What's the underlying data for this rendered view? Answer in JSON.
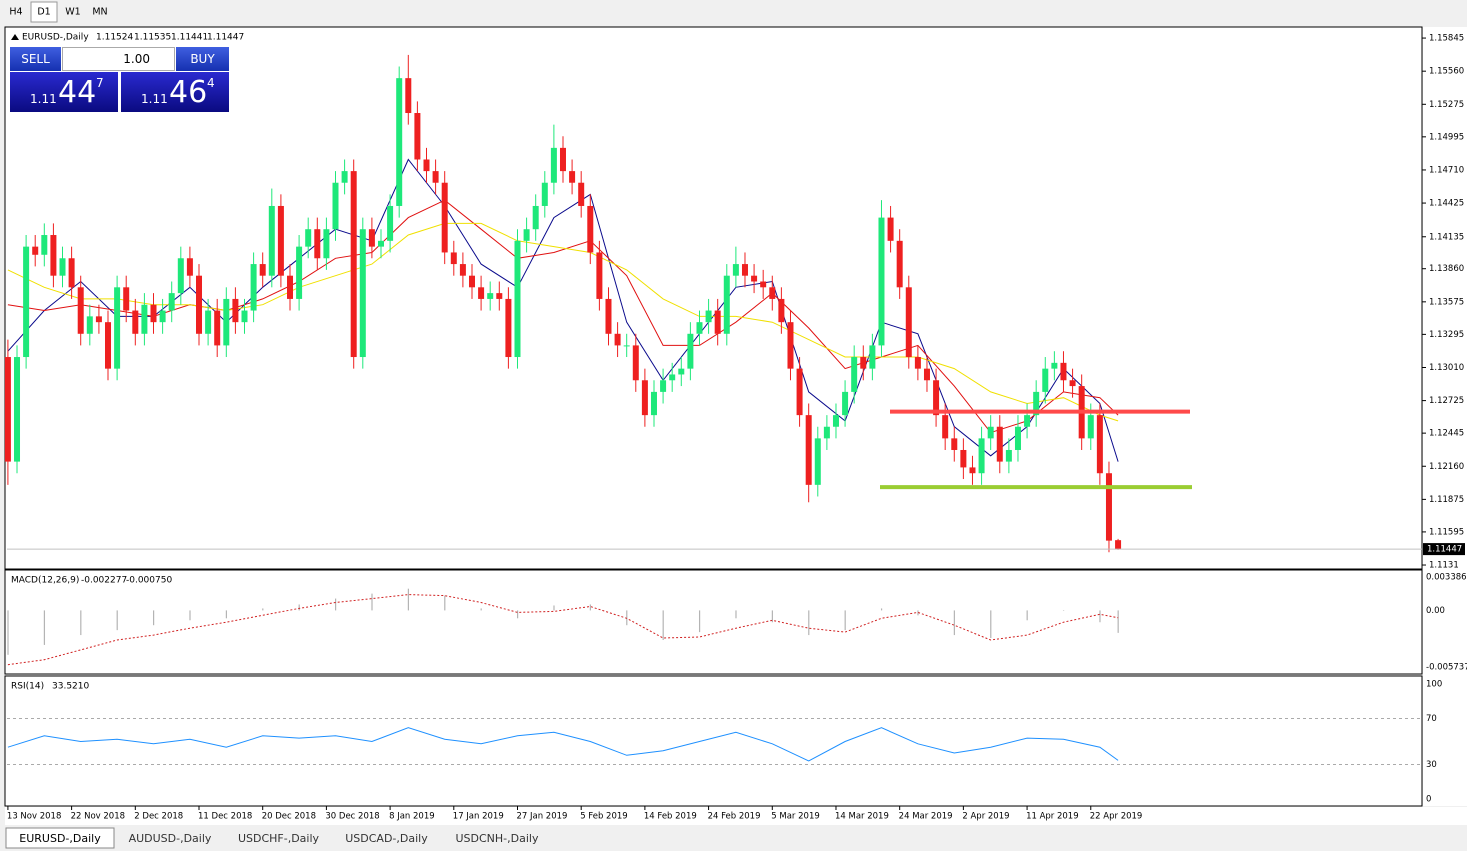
{
  "toolbar": {
    "timeframes": [
      "H4",
      "D1",
      "W1",
      "MN"
    ]
  },
  "trade_panel": {
    "sell": "SELL",
    "buy": "BUY",
    "lots": "1.00",
    "sell_price": {
      "prefix": "1.11",
      "big": "44",
      "small": "7"
    },
    "buy_price": {
      "prefix": "1.11",
      "big": "46",
      "small": "4"
    }
  },
  "tabs": [
    "EURUSD-,Daily",
    "AUDUSD-,Daily",
    "USDCHF-,Daily",
    "USDCAD-,Daily",
    "USDCNH-,Daily"
  ],
  "chart_data": [
    {
      "type": "candlestick",
      "symbol": "EURUSD-,Daily",
      "up_color": "#1ee87a",
      "down_color": "#ee2020",
      "xlim": [
        -0.1,
        155.4
      ],
      "ylim": [
        1.11293,
        1.15923
      ],
      "yticks": [
        1.15845,
        {
          "value": 1.1556,
          "label": "1.15560"
        },
        1.15275,
        1.14995,
        {
          "value": 1.1471,
          "label": "1.14710"
        },
        1.14425,
        1.14135,
        {
          "value": 1.1386,
          "label": "1.13860"
        },
        1.13575,
        1.13295,
        {
          "value": 1.1301,
          "label": "1.13010"
        },
        1.12725,
        1.12445,
        {
          "value": 1.1216,
          "label": "1.12160"
        },
        1.11875,
        1.11595,
        1.1131
      ],
      "categories": [
        "13 Nov 2018",
        null,
        null,
        null,
        null,
        null,
        null,
        "22 Nov 2018",
        null,
        null,
        null,
        null,
        null,
        null,
        "2 Dec 2018",
        null,
        null,
        null,
        null,
        null,
        null,
        "11 Dec 2018",
        null,
        null,
        null,
        null,
        null,
        null,
        "20 Dec 2018",
        null,
        null,
        null,
        null,
        null,
        null,
        "30 Dec 2018",
        null,
        null,
        null,
        null,
        null,
        null,
        "8 Jan 2019",
        null,
        null,
        null,
        null,
        null,
        null,
        "17 Jan 2019",
        null,
        null,
        null,
        null,
        null,
        null,
        "27 Jan 2019",
        null,
        null,
        null,
        null,
        null,
        null,
        "5 Feb 2019",
        null,
        null,
        null,
        null,
        null,
        null,
        "14 Feb 2019",
        null,
        null,
        null,
        null,
        null,
        null,
        "24 Feb 2019",
        null,
        null,
        null,
        null,
        null,
        null,
        "5 Mar 2019",
        null,
        null,
        null,
        null,
        null,
        null,
        "14 Mar 2019",
        null,
        null,
        null,
        null,
        null,
        null,
        "24 Mar 2019",
        null,
        null,
        null,
        null,
        null,
        null,
        "2 Apr 2019",
        null,
        null,
        null,
        null,
        null,
        null,
        "11 Apr 2019",
        null,
        null,
        null,
        null,
        null,
        null,
        "22 Apr 2019",
        null,
        null,
        null
      ],
      "ohlc": [
        [
          1.131,
          1.1325,
          1.12,
          1.122
        ],
        [
          1.122,
          1.132,
          1.121,
          1.131
        ],
        [
          1.131,
          1.1415,
          1.13,
          1.1405
        ],
        [
          1.1405,
          1.1415,
          1.1388,
          1.1398
        ],
        [
          1.1398,
          1.1425,
          1.1388,
          1.1415
        ],
        [
          1.1415,
          1.1425,
          1.137,
          1.138
        ],
        [
          1.138,
          1.1405,
          1.137,
          1.1395
        ],
        [
          1.1395,
          1.1405,
          1.136,
          1.137
        ],
        [
          1.137,
          1.138,
          1.132,
          1.133
        ],
        [
          1.133,
          1.1355,
          1.132,
          1.1345
        ],
        [
          1.1345,
          1.1355,
          1.133,
          1.134
        ],
        [
          1.134,
          1.135,
          1.129,
          1.13
        ],
        [
          1.13,
          1.138,
          1.129,
          1.137
        ],
        [
          1.137,
          1.138,
          1.134,
          1.135
        ],
        [
          1.135,
          1.136,
          1.132,
          1.133
        ],
        [
          1.133,
          1.1365,
          1.132,
          1.1355
        ],
        [
          1.1355,
          1.1365,
          1.133,
          1.134
        ],
        [
          1.134,
          1.136,
          1.133,
          1.135
        ],
        [
          1.135,
          1.1375,
          1.134,
          1.1365
        ],
        [
          1.1365,
          1.1405,
          1.1355,
          1.1395
        ],
        [
          1.1395,
          1.1405,
          1.137,
          1.138
        ],
        [
          1.138,
          1.139,
          1.132,
          1.133
        ],
        [
          1.133,
          1.136,
          1.132,
          1.135
        ],
        [
          1.135,
          1.136,
          1.131,
          1.132
        ],
        [
          1.132,
          1.137,
          1.131,
          1.136
        ],
        [
          1.136,
          1.137,
          1.133,
          1.134
        ],
        [
          1.134,
          1.136,
          1.133,
          1.135
        ],
        [
          1.135,
          1.14,
          1.134,
          1.139
        ],
        [
          1.139,
          1.14,
          1.137,
          1.138
        ],
        [
          1.138,
          1.1455,
          1.137,
          1.144
        ],
        [
          1.144,
          1.145,
          1.137,
          1.138
        ],
        [
          1.138,
          1.139,
          1.135,
          1.136
        ],
        [
          1.136,
          1.1415,
          1.135,
          1.1405
        ],
        [
          1.1405,
          1.143,
          1.1395,
          1.142
        ],
        [
          1.142,
          1.143,
          1.1385,
          1.1395
        ],
        [
          1.1395,
          1.143,
          1.1385,
          1.142
        ],
        [
          1.142,
          1.147,
          1.141,
          1.146
        ],
        [
          1.146,
          1.148,
          1.145,
          1.147
        ],
        [
          1.147,
          1.148,
          1.13,
          1.131
        ],
        [
          1.131,
          1.143,
          1.13,
          1.142
        ],
        [
          1.142,
          1.143,
          1.1395,
          1.1405
        ],
        [
          1.1405,
          1.142,
          1.1395,
          1.141
        ],
        [
          1.141,
          1.145,
          1.14,
          1.144
        ],
        [
          1.144,
          1.156,
          1.143,
          1.155
        ],
        [
          1.155,
          1.157,
          1.151,
          1.152
        ],
        [
          1.152,
          1.153,
          1.147,
          1.148
        ],
        [
          1.148,
          1.149,
          1.146,
          1.147
        ],
        [
          1.147,
          1.148,
          1.145,
          1.146
        ],
        [
          1.146,
          1.147,
          1.139,
          1.14
        ],
        [
          1.14,
          1.141,
          1.138,
          1.139
        ],
        [
          1.139,
          1.14,
          1.137,
          1.138
        ],
        [
          1.138,
          1.139,
          1.136,
          1.137
        ],
        [
          1.137,
          1.138,
          1.135,
          1.136
        ],
        [
          1.136,
          1.1375,
          1.135,
          1.1365
        ],
        [
          1.1365,
          1.1375,
          1.135,
          1.136
        ],
        [
          1.136,
          1.137,
          1.13,
          1.131
        ],
        [
          1.131,
          1.142,
          1.13,
          1.141
        ],
        [
          1.141,
          1.143,
          1.14,
          1.142
        ],
        [
          1.142,
          1.145,
          1.141,
          1.144
        ],
        [
          1.144,
          1.147,
          1.143,
          1.146
        ],
        [
          1.146,
          1.151,
          1.145,
          1.149
        ],
        [
          1.149,
          1.15,
          1.146,
          1.147
        ],
        [
          1.147,
          1.148,
          1.145,
          1.146
        ],
        [
          1.146,
          1.147,
          1.143,
          1.144
        ],
        [
          1.144,
          1.145,
          1.139,
          1.14
        ],
        [
          1.14,
          1.141,
          1.135,
          1.136
        ],
        [
          1.136,
          1.137,
          1.132,
          1.133
        ],
        [
          1.133,
          1.134,
          1.131,
          1.132
        ],
        [
          1.132,
          1.133,
          1.131,
          1.132
        ],
        [
          1.132,
          1.133,
          1.128,
          1.129
        ],
        [
          1.129,
          1.13,
          1.125,
          1.126
        ],
        [
          1.126,
          1.129,
          1.125,
          1.128
        ],
        [
          1.128,
          1.13,
          1.127,
          1.129
        ],
        [
          1.129,
          1.1305,
          1.128,
          1.1295
        ],
        [
          1.1295,
          1.131,
          1.1285,
          1.13
        ],
        [
          1.13,
          1.134,
          1.129,
          1.133
        ],
        [
          1.133,
          1.135,
          1.132,
          1.134
        ],
        [
          1.134,
          1.136,
          1.133,
          1.135
        ],
        [
          1.135,
          1.136,
          1.132,
          1.133
        ],
        [
          1.133,
          1.139,
          1.132,
          1.138
        ],
        [
          1.138,
          1.1405,
          1.137,
          1.139
        ],
        [
          1.139,
          1.14,
          1.137,
          1.138
        ],
        [
          1.138,
          1.139,
          1.1365,
          1.1375
        ],
        [
          1.1375,
          1.1385,
          1.136,
          1.137
        ],
        [
          1.137,
          1.138,
          1.135,
          1.136
        ],
        [
          1.136,
          1.137,
          1.133,
          1.134
        ],
        [
          1.134,
          1.135,
          1.129,
          1.13
        ],
        [
          1.13,
          1.131,
          1.125,
          1.126
        ],
        [
          1.126,
          1.127,
          1.1185,
          1.12
        ],
        [
          1.12,
          1.125,
          1.119,
          1.124
        ],
        [
          1.124,
          1.126,
          1.123,
          1.125
        ],
        [
          1.125,
          1.127,
          1.124,
          1.126
        ],
        [
          1.126,
          1.129,
          1.125,
          1.128
        ],
        [
          1.128,
          1.132,
          1.127,
          1.131
        ],
        [
          1.131,
          1.132,
          1.129,
          1.13
        ],
        [
          1.13,
          1.133,
          1.129,
          1.132
        ],
        [
          1.132,
          1.1445,
          1.131,
          1.143
        ],
        [
          1.143,
          1.144,
          1.14,
          1.141
        ],
        [
          1.141,
          1.142,
          1.136,
          1.137
        ],
        [
          1.137,
          1.138,
          1.13,
          1.131
        ],
        [
          1.131,
          1.132,
          1.129,
          1.13
        ],
        [
          1.13,
          1.131,
          1.128,
          1.129
        ],
        [
          1.129,
          1.13,
          1.125,
          1.126
        ],
        [
          1.126,
          1.127,
          1.123,
          1.124
        ],
        [
          1.124,
          1.125,
          1.122,
          1.123
        ],
        [
          1.123,
          1.124,
          1.1205,
          1.1215
        ],
        [
          1.1215,
          1.1225,
          1.12,
          1.121
        ],
        [
          1.121,
          1.125,
          1.12,
          1.124
        ],
        [
          1.124,
          1.126,
          1.123,
          1.125
        ],
        [
          1.125,
          1.126,
          1.121,
          1.122
        ],
        [
          1.122,
          1.124,
          1.121,
          1.123
        ],
        [
          1.123,
          1.126,
          1.122,
          1.125
        ],
        [
          1.125,
          1.127,
          1.124,
          1.126
        ],
        [
          1.126,
          1.129,
          1.125,
          1.128
        ],
        [
          1.128,
          1.131,
          1.127,
          1.13
        ],
        [
          1.13,
          1.1315,
          1.129,
          1.1305
        ],
        [
          1.1305,
          1.1315,
          1.128,
          1.129
        ],
        [
          1.129,
          1.13,
          1.1275,
          1.1285
        ],
        [
          1.1285,
          1.1295,
          1.123,
          1.124
        ],
        [
          1.124,
          1.127,
          1.123,
          1.126
        ],
        [
          1.126,
          1.127,
          1.12,
          1.121
        ],
        [
          1.121,
          1.122,
          1.1142,
          1.1152
        ],
        [
          1.11524,
          1.11535,
          1.11441,
          1.11447
        ]
      ],
      "x": [
        0,
        4,
        8,
        12,
        16,
        20,
        24,
        28,
        32,
        36,
        40,
        44,
        48,
        52,
        56,
        60,
        64,
        68,
        72,
        76,
        80,
        84,
        88,
        92,
        96,
        100,
        104,
        108,
        112,
        116,
        120,
        122
      ],
      "series": [
        {
          "color": "#0a0a8c",
          "values": [
            1.1315,
            1.135,
            1.1375,
            1.1345,
            1.1345,
            1.137,
            1.134,
            1.137,
            1.1395,
            1.142,
            1.141,
            1.148,
            1.144,
            1.139,
            1.137,
            1.143,
            1.145,
            1.134,
            1.129,
            1.133,
            1.137,
            1.1375,
            1.128,
            1.1255,
            1.134,
            1.133,
            1.125,
            1.1225,
            1.125,
            1.13,
            1.127,
            1.122
          ]
        },
        {
          "color": "#e01010",
          "values": [
            1.1355,
            1.135,
            1.1355,
            1.135,
            1.1345,
            1.1355,
            1.135,
            1.136,
            1.1375,
            1.1395,
            1.14,
            1.143,
            1.1445,
            1.142,
            1.1395,
            1.14,
            1.141,
            1.138,
            1.132,
            1.132,
            1.134,
            1.1365,
            1.1335,
            1.13,
            1.131,
            1.132,
            1.1285,
            1.1245,
            1.1255,
            1.128,
            1.1275,
            1.126
          ]
        },
        {
          "color": "#f0e000",
          "values": [
            1.1385,
            1.137,
            1.136,
            1.136,
            1.1355,
            1.1355,
            1.135,
            1.1355,
            1.137,
            1.138,
            1.139,
            1.1415,
            1.1425,
            1.1425,
            1.141,
            1.1405,
            1.14,
            1.1385,
            1.136,
            1.1345,
            1.1345,
            1.134,
            1.1325,
            1.131,
            1.131,
            1.131,
            1.13,
            1.128,
            1.127,
            1.1275,
            1.126,
            1.1255
          ]
        }
      ],
      "levels": [
        {
          "value": 1.1263,
          "color": "#ff4a4a"
        },
        {
          "value": 1.1198,
          "color": "#9acd32"
        }
      ]
    },
    {
      "type": "macd",
      "label": "MACD(12,26,9)",
      "readings": {
        "values": [
          -0.002277,
          -0.00075
        ],
        "value_labels": [
          "-0.002277",
          "-0.000750"
        ]
      },
      "ylim": [
        -0.005737,
        0.003386
      ],
      "yticks": [
        0.003386,
        {
          "value": 0,
          "label": "0.00"
        },
        -0.005737
      ],
      "histogram": {
        "color": "#b4b4b4",
        "values": [
          -0.0045,
          -0.0035,
          -0.0025,
          -0.002,
          -0.0015,
          -0.001,
          -0.0008,
          0.0002,
          0.0006,
          0.0012,
          0.0017,
          0.0022,
          0.0015,
          0.0002,
          -0.0008,
          0.0005,
          0.0006,
          -0.0015,
          -0.003,
          -0.0022,
          -0.0008,
          -0.0012,
          -0.0025,
          -0.002,
          0.0002,
          -0.0005,
          -0.0025,
          -0.0028,
          -0.001,
          0,
          -0.0012,
          -0.002277
        ]
      },
      "signal": {
        "color": "#d02020",
        "values": [
          -0.0055,
          -0.005,
          -0.004,
          -0.003,
          -0.0025,
          -0.0018,
          -0.0012,
          -0.0005,
          0.0002,
          0.0008,
          0.0012,
          0.0016,
          0.0015,
          0.0008,
          -0.0002,
          -0.0001,
          0.0004,
          -0.0008,
          -0.0028,
          -0.0027,
          -0.0018,
          -0.001,
          -0.0018,
          -0.0022,
          -0.0008,
          -0.0002,
          -0.0015,
          -0.003,
          -0.0025,
          -0.0012,
          -0.0004,
          -0.00075
        ]
      }
    },
    {
      "type": "rsi",
      "label": "RSI(14)",
      "reading": {
        "value": 33.521,
        "label": "33.5210"
      },
      "ylim": [
        -6.1,
        106.1
      ],
      "yticks": [
        100,
        70,
        30,
        0
      ],
      "levels": [
        70,
        30
      ],
      "color": "#1e90ff",
      "values": [
        45,
        55,
        50,
        52,
        48,
        52,
        45,
        55,
        53,
        55,
        50,
        62,
        52,
        48,
        55,
        58,
        50,
        38,
        42,
        50,
        58,
        48,
        33,
        50,
        62,
        48,
        40,
        45,
        53,
        52,
        45,
        33.521
      ]
    }
  ]
}
